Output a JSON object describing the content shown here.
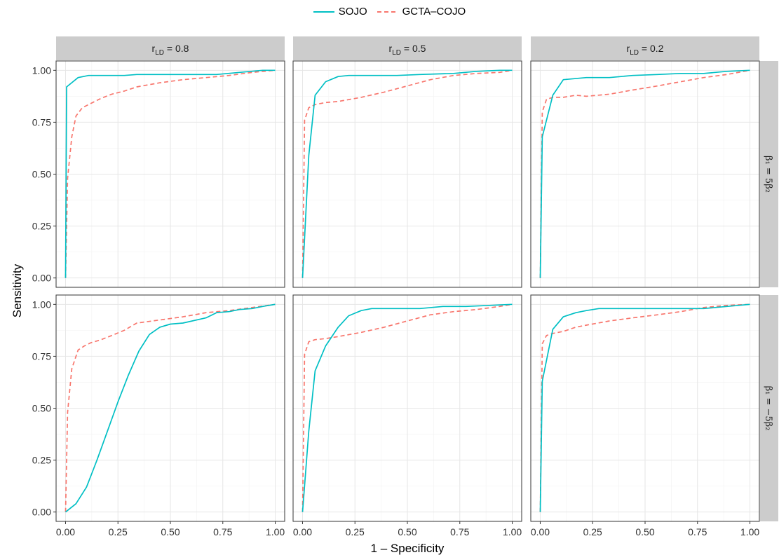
{
  "legend": {
    "items": [
      {
        "label": "SOJO",
        "color": "#00BFC4",
        "dash": "solid"
      },
      {
        "label": "GCTA–COJO",
        "color": "#F8766D",
        "dash": "dashed"
      }
    ],
    "placement": "top"
  },
  "axes": {
    "xlabel": "1 – Specificity",
    "ylabel": "Sensitivity",
    "xticks": [
      "0.00",
      "0.25",
      "0.50",
      "0.75",
      "1.00"
    ],
    "yticks": [
      "0.00",
      "0.25",
      "0.50",
      "0.75",
      "1.00"
    ]
  },
  "facets": {
    "columns": [
      {
        "base": "r",
        "sub": "LD",
        "rest": " = 0.8"
      },
      {
        "base": "r",
        "sub": "LD",
        "rest": " = 0.5"
      },
      {
        "base": "r",
        "sub": "LD",
        "rest": " = 0.2"
      }
    ],
    "rows": [
      {
        "label": "β₁ = 5β₂"
      },
      {
        "label": "β₁ = −5β₂"
      }
    ]
  },
  "chart_data": {
    "type": "line",
    "xlim": [
      0,
      1
    ],
    "ylim": [
      0,
      1
    ],
    "grid": true,
    "panels": [
      {
        "row": 0,
        "col": 0,
        "series": [
          {
            "name": "SOJO",
            "x": [
              0,
              0.005,
              0.06,
              0.11,
              0.17,
              0.28,
              0.34,
              0.45,
              0.56,
              0.72,
              0.83,
              0.94,
              1.0
            ],
            "y": [
              0,
              0.92,
              0.965,
              0.975,
              0.975,
              0.975,
              0.98,
              0.98,
              0.98,
              0.98,
              0.99,
              1.0,
              1.0
            ]
          },
          {
            "name": "GCTA–COJO",
            "x": [
              0,
              0.01,
              0.03,
              0.05,
              0.08,
              0.12,
              0.17,
              0.22,
              0.28,
              0.34,
              0.45,
              0.56,
              0.67,
              0.78,
              0.89,
              1.0
            ],
            "y": [
              0,
              0.48,
              0.68,
              0.78,
              0.82,
              0.84,
              0.865,
              0.885,
              0.9,
              0.92,
              0.94,
              0.955,
              0.965,
              0.975,
              0.99,
              1.0
            ]
          }
        ]
      },
      {
        "row": 0,
        "col": 1,
        "series": [
          {
            "name": "SOJO",
            "x": [
              0,
              0.03,
              0.06,
              0.11,
              0.17,
              0.22,
              0.28,
              0.45,
              0.56,
              0.72,
              0.83,
              0.94,
              1.0
            ],
            "y": [
              0,
              0.59,
              0.88,
              0.945,
              0.97,
              0.975,
              0.975,
              0.975,
              0.98,
              0.985,
              0.995,
              1.0,
              1.0
            ]
          },
          {
            "name": "GCTA–COJO",
            "x": [
              0,
              0.01,
              0.03,
              0.06,
              0.11,
              0.17,
              0.28,
              0.39,
              0.5,
              0.61,
              0.72,
              0.83,
              0.94,
              1.0
            ],
            "y": [
              0,
              0.76,
              0.82,
              0.835,
              0.845,
              0.85,
              0.87,
              0.895,
              0.925,
              0.955,
              0.975,
              0.985,
              0.99,
              1.0
            ]
          }
        ]
      },
      {
        "row": 0,
        "col": 2,
        "series": [
          {
            "name": "SOJO",
            "x": [
              0,
              0.01,
              0.06,
              0.11,
              0.22,
              0.33,
              0.44,
              0.56,
              0.67,
              0.78,
              0.89,
              1.0
            ],
            "y": [
              0,
              0.68,
              0.88,
              0.955,
              0.965,
              0.965,
              0.975,
              0.98,
              0.985,
              0.985,
              0.995,
              1.0
            ]
          },
          {
            "name": "GCTA–COJO",
            "x": [
              0,
              0.01,
              0.03,
              0.06,
              0.11,
              0.17,
              0.22,
              0.33,
              0.44,
              0.56,
              0.67,
              0.78,
              0.89,
              1.0
            ],
            "y": [
              0,
              0.8,
              0.86,
              0.87,
              0.87,
              0.88,
              0.875,
              0.885,
              0.905,
              0.925,
              0.945,
              0.965,
              0.98,
              1.0
            ]
          }
        ]
      },
      {
        "row": 1,
        "col": 0,
        "series": [
          {
            "name": "SOJO",
            "x": [
              0,
              0.05,
              0.1,
              0.15,
              0.2,
              0.25,
              0.3,
              0.35,
              0.4,
              0.45,
              0.5,
              0.56,
              0.67,
              0.72,
              0.78,
              0.83,
              0.89,
              0.94,
              1.0
            ],
            "y": [
              0,
              0.04,
              0.12,
              0.25,
              0.39,
              0.53,
              0.66,
              0.775,
              0.855,
              0.89,
              0.905,
              0.91,
              0.935,
              0.96,
              0.965,
              0.975,
              0.98,
              0.99,
              1.0
            ]
          },
          {
            "name": "GCTA–COJO",
            "x": [
              0,
              0.01,
              0.03,
              0.06,
              0.09,
              0.12,
              0.17,
              0.22,
              0.28,
              0.34,
              0.45,
              0.56,
              0.67,
              0.78,
              0.89,
              1.0
            ],
            "y": [
              0,
              0.48,
              0.69,
              0.78,
              0.8,
              0.815,
              0.83,
              0.85,
              0.875,
              0.91,
              0.925,
              0.94,
              0.96,
              0.97,
              0.985,
              1.0
            ]
          }
        ]
      },
      {
        "row": 1,
        "col": 1,
        "series": [
          {
            "name": "SOJO",
            "x": [
              0,
              0.03,
              0.06,
              0.11,
              0.17,
              0.22,
              0.28,
              0.33,
              0.44,
              0.56,
              0.67,
              0.78,
              0.89,
              1.0
            ],
            "y": [
              0,
              0.39,
              0.68,
              0.8,
              0.89,
              0.945,
              0.97,
              0.98,
              0.98,
              0.98,
              0.99,
              0.99,
              0.995,
              1.0
            ]
          },
          {
            "name": "GCTA–COJO",
            "x": [
              0,
              0.01,
              0.03,
              0.06,
              0.11,
              0.17,
              0.28,
              0.39,
              0.5,
              0.61,
              0.72,
              0.83,
              0.94,
              1.0
            ],
            "y": [
              0,
              0.76,
              0.82,
              0.83,
              0.835,
              0.845,
              0.865,
              0.89,
              0.92,
              0.95,
              0.965,
              0.975,
              0.99,
              1.0
            ]
          }
        ]
      },
      {
        "row": 1,
        "col": 2,
        "series": [
          {
            "name": "SOJO",
            "x": [
              0,
              0.01,
              0.06,
              0.11,
              0.17,
              0.22,
              0.28,
              0.44,
              0.56,
              0.67,
              0.78,
              0.89,
              1.0
            ],
            "y": [
              0,
              0.63,
              0.88,
              0.94,
              0.96,
              0.97,
              0.98,
              0.98,
              0.98,
              0.98,
              0.98,
              0.99,
              1.0
            ]
          },
          {
            "name": "GCTA–COJO",
            "x": [
              0,
              0.01,
              0.03,
              0.06,
              0.11,
              0.17,
              0.22,
              0.33,
              0.44,
              0.56,
              0.67,
              0.78,
              0.89,
              1.0
            ],
            "y": [
              0,
              0.81,
              0.85,
              0.86,
              0.87,
              0.89,
              0.9,
              0.92,
              0.935,
              0.95,
              0.965,
              0.985,
              0.995,
              1.0
            ]
          }
        ]
      }
    ]
  }
}
